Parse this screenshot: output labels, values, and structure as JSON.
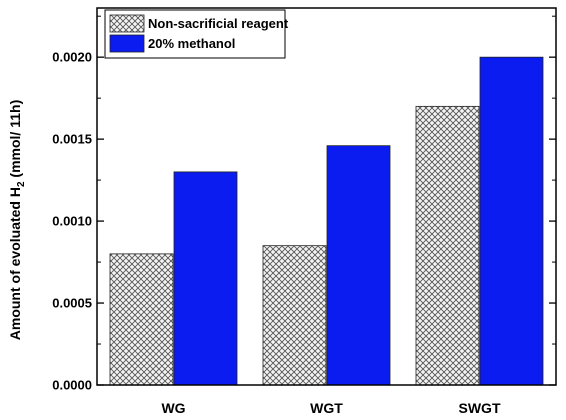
{
  "chart_data": {
    "type": "bar",
    "categories": [
      "WG",
      "WGT",
      "SWGT"
    ],
    "series": [
      {
        "name": "Non-sacrificial reagent",
        "values": [
          0.0008,
          0.00085,
          0.0017
        ],
        "pattern": "crosshatch",
        "color": "#ffffff"
      },
      {
        "name": "20% methanol",
        "values": [
          0.0013,
          0.00146,
          0.002
        ],
        "pattern": "solid",
        "color": "#0a1cf0"
      }
    ],
    "ylabel_main": "Amount of evoluated H",
    "ylabel_sub": "2",
    "ylabel_tail": " (mmol/ 11h)",
    "xlabel": "",
    "ylim": [
      0,
      0.0023
    ],
    "yticks": [
      0.0,
      0.0005,
      0.001,
      0.0015,
      0.002
    ],
    "ytick_labels": [
      "0.0000",
      "0.0005",
      "0.0010",
      "0.0015",
      "0.0020"
    ],
    "legend_position": "top-left",
    "grid": false
  }
}
